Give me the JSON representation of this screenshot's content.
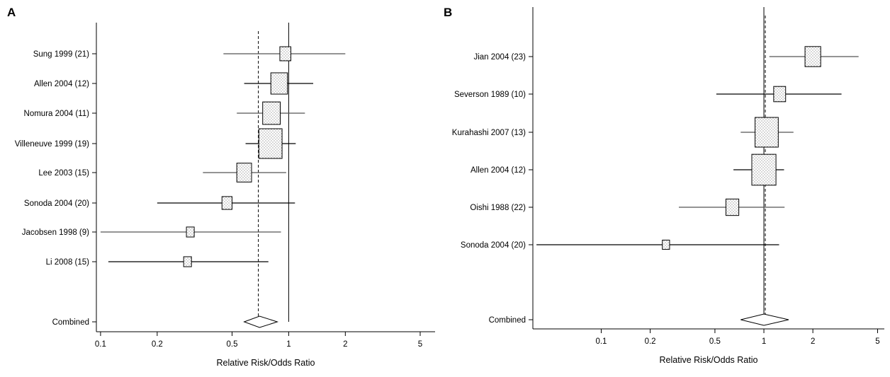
{
  "chart_data": [
    {
      "type": "forest",
      "panel": "A",
      "xlabel": "Relative Risk/Odds Ratio",
      "xscale": "log",
      "xticks": [
        0.1,
        0.2,
        0.5,
        1,
        2,
        5
      ],
      "xtick_labels": [
        "0.1",
        "0.2",
        "0.5",
        "1",
        "2",
        "5"
      ],
      "xlim": [
        0.095,
        6
      ],
      "reference_line": 1,
      "pooled_line": 0.69,
      "studies": [
        {
          "label": "Sung 1999 (21)",
          "estimate": 0.96,
          "ci": [
            0.45,
            2.0
          ],
          "weight": 0.35
        },
        {
          "label": "Allen 2004 (12)",
          "estimate": 0.89,
          "ci": [
            0.58,
            1.35
          ],
          "weight": 0.65
        },
        {
          "label": "Nomura 2004 (11)",
          "estimate": 0.81,
          "ci": [
            0.53,
            1.22
          ],
          "weight": 0.7
        },
        {
          "label": "Villeneuve 1999 (19)",
          "estimate": 0.8,
          "ci": [
            0.59,
            1.09
          ],
          "weight": 1.0
        },
        {
          "label": "Lee 2003 (15)",
          "estimate": 0.58,
          "ci": [
            0.35,
            0.97
          ],
          "weight": 0.55
        },
        {
          "label": "Sonoda 2004 (20)",
          "estimate": 0.47,
          "ci": [
            0.2,
            1.08
          ],
          "weight": 0.3
        },
        {
          "label": "Jacobsen 1998 (9)",
          "estimate": 0.3,
          "ci": [
            0.1,
            0.91
          ],
          "weight": 0.18
        },
        {
          "label": "Li 2008 (15)",
          "estimate": 0.29,
          "ci": [
            0.11,
            0.78
          ],
          "weight": 0.18
        }
      ],
      "combined": {
        "label": "Combined",
        "estimate": 0.7,
        "ci": [
          0.58,
          0.87
        ]
      }
    },
    {
      "type": "forest",
      "panel": "B",
      "xlabel": "Relative Risk/Odds Ratio",
      "xscale": "log",
      "xticks": [
        0.1,
        0.2,
        0.5,
        1,
        2,
        5
      ],
      "xtick_labels": [
        "0.1",
        "0.2",
        "0.5",
        "1",
        "2",
        "5"
      ],
      "xlim": [
        0.038,
        5.5
      ],
      "reference_line": 1,
      "pooled_line": 1.02,
      "studies": [
        {
          "label": "Jian 2004 (23)",
          "estimate": 2.0,
          "ci": [
            1.08,
            3.82
          ],
          "weight": 0.6
        },
        {
          "label": "Severson 1989 (10)",
          "estimate": 1.25,
          "ci": [
            0.51,
            3.0
          ],
          "weight": 0.4
        },
        {
          "label": "Kurahashi 2007 (13)",
          "estimate": 1.04,
          "ci": [
            0.72,
            1.52
          ],
          "weight": 1.0
        },
        {
          "label": "Allen 2004 (12)",
          "estimate": 1.0,
          "ci": [
            0.65,
            1.33
          ],
          "weight": 1.05
        },
        {
          "label": "Oishi 1988 (22)",
          "estimate": 0.64,
          "ci": [
            0.3,
            1.34
          ],
          "weight": 0.45
        },
        {
          "label": "Sonoda 2004 (20)",
          "estimate": 0.25,
          "ci": [
            0.04,
            1.24
          ],
          "weight": 0.15
        }
      ],
      "combined": {
        "label": "Combined",
        "estimate": 1.0,
        "ci": [
          0.72,
          1.42
        ]
      }
    }
  ]
}
